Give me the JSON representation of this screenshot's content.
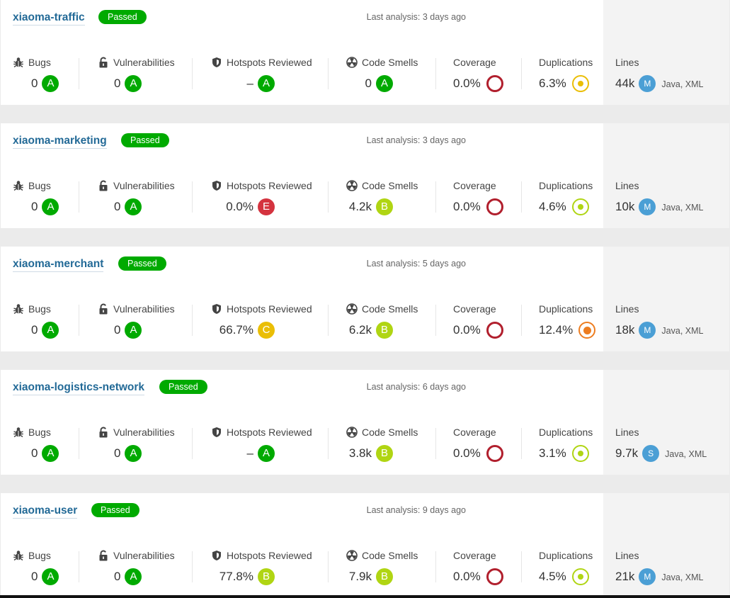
{
  "labels": {
    "bugs": "Bugs",
    "vulnerabilities": "Vulnerabilities",
    "hotspots": "Hotspots Reviewed",
    "smells": "Code Smells",
    "coverage": "Coverage",
    "duplications": "Duplications",
    "lines": "Lines"
  },
  "colors": {
    "project_link": "#236a97",
    "passed": "#00aa00",
    "rating_A": "#00aa00",
    "rating_B": "#b0d513",
    "rating_C": "#eabe06",
    "rating_E": "#d4333f",
    "coverage_ring": "#b11f2d",
    "size_badge": "#4b9fd5"
  },
  "projects": [
    {
      "name": "xiaoma-traffic",
      "gate": "Passed",
      "last_analysis": "Last analysis: 3 days ago",
      "bugs": "0",
      "bugs_rating": "A",
      "vulns": "0",
      "vulns_rating": "A",
      "hotspots": "–",
      "hotspots_rating": "A",
      "smells": "0",
      "smells_rating": "A",
      "coverage": "0.0%",
      "duplications": "6.3%",
      "dup_level": "yellow",
      "lines": "44k",
      "size": "M",
      "languages": "Java, XML"
    },
    {
      "name": "xiaoma-marketing",
      "gate": "Passed",
      "last_analysis": "Last analysis: 3 days ago",
      "bugs": "0",
      "bugs_rating": "A",
      "vulns": "0",
      "vulns_rating": "A",
      "hotspots": "0.0%",
      "hotspots_rating": "E",
      "smells": "4.2k",
      "smells_rating": "B",
      "coverage": "0.0%",
      "duplications": "4.6%",
      "dup_level": "green",
      "lines": "10k",
      "size": "M",
      "languages": "Java, XML"
    },
    {
      "name": "xiaoma-merchant",
      "gate": "Passed",
      "last_analysis": "Last analysis: 5 days ago",
      "bugs": "0",
      "bugs_rating": "A",
      "vulns": "0",
      "vulns_rating": "A",
      "hotspots": "66.7%",
      "hotspots_rating": "C",
      "smells": "6.2k",
      "smells_rating": "B",
      "coverage": "0.0%",
      "duplications": "12.4%",
      "dup_level": "orange",
      "lines": "18k",
      "size": "M",
      "languages": "Java, XML"
    },
    {
      "name": "xiaoma-logistics-network",
      "gate": "Passed",
      "last_analysis": "Last analysis: 6 days ago",
      "bugs": "0",
      "bugs_rating": "A",
      "vulns": "0",
      "vulns_rating": "A",
      "hotspots": "–",
      "hotspots_rating": "A",
      "smells": "3.8k",
      "smells_rating": "B",
      "coverage": "0.0%",
      "duplications": "3.1%",
      "dup_level": "green",
      "lines": "9.7k",
      "size": "S",
      "languages": "Java, XML"
    },
    {
      "name": "xiaoma-user",
      "gate": "Passed",
      "last_analysis": "Last analysis: 9 days ago",
      "bugs": "0",
      "bugs_rating": "A",
      "vulns": "0",
      "vulns_rating": "A",
      "hotspots": "77.8%",
      "hotspots_rating": "B",
      "smells": "7.9k",
      "smells_rating": "B",
      "coverage": "0.0%",
      "duplications": "4.5%",
      "dup_level": "green",
      "lines": "21k",
      "size": "M",
      "languages": "Java, XML"
    }
  ]
}
